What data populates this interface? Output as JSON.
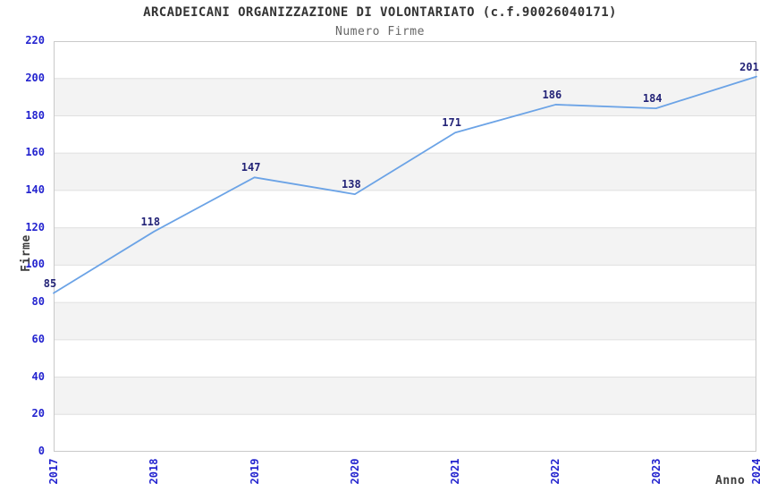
{
  "page": {
    "background": "#ffffff"
  },
  "chart_data": {
    "type": "line",
    "title": "ARCADEICANI ORGANIZZAZIONE DI VOLONTARIATO (c.f.90026040171)",
    "subtitle": "Numero Firme",
    "xlabel": "Anno",
    "ylabel": "Firme",
    "categories": [
      "2017",
      "2018",
      "2019",
      "2020",
      "2021",
      "2022",
      "2023",
      "2024"
    ],
    "values": [
      85,
      118,
      147,
      138,
      171,
      186,
      184,
      201
    ],
    "show_point_labels": true,
    "ylim": [
      0,
      220
    ],
    "yticks": [
      0,
      20,
      40,
      60,
      80,
      100,
      120,
      140,
      160,
      180,
      200,
      220
    ],
    "grid": true,
    "banded_background": true,
    "legend_position": "none",
    "colors": {
      "line": "#6ba3e6",
      "band": "#f3f3f3",
      "grid": "#e0e0e0",
      "border": "#c9c9c9",
      "tick_text": "#2323cf",
      "point_label_text": "#232377",
      "title_text": "#333333",
      "subtitle_text": "#666666",
      "axis_title_text": "#3d3d3d",
      "background": "#ffffff"
    }
  }
}
